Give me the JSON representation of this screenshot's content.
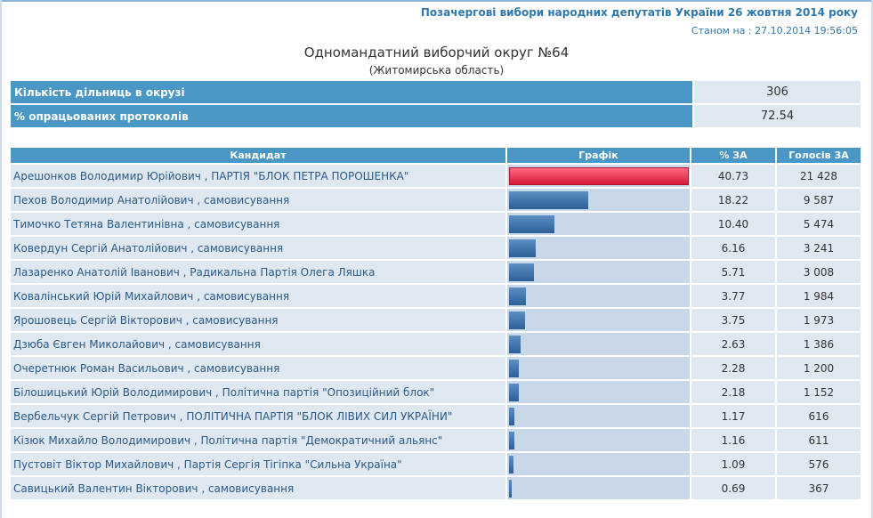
{
  "header": {
    "election_title": "Позачергові вибори народних депутатів України 26 жовтня 2014 року",
    "status_label": "Станом на :",
    "status_datetime": "27.10.2014 19:56:05"
  },
  "district": {
    "title": "Одномандатний виборчий округ №64",
    "region": "(Житомирська область)"
  },
  "summary": [
    {
      "label": "Кількість дільниць в окрузі",
      "value": "306"
    },
    {
      "label": "% опрацьованих протоколів",
      "value": "72.54"
    }
  ],
  "table": {
    "headers": [
      "Кандидат",
      "Графік",
      "% ЗА",
      "Голосів ЗА"
    ],
    "rows": [
      {
        "name": "Арешонков Володимир Юрійович",
        "party": " , ПАРТІЯ \"БЛОК ПЕТРА ПОРОШЕНКА\"",
        "pct": 40.73,
        "pct_text": "40.73",
        "votes": "21 428"
      },
      {
        "name": "Пехов Володимир Анатолійович",
        "party": " , самовисування",
        "pct": 18.22,
        "pct_text": "18.22",
        "votes": "9 587"
      },
      {
        "name": "Тимочко Тетяна Валентинівна",
        "party": " , самовисування",
        "pct": 10.4,
        "pct_text": "10.40",
        "votes": "5 474"
      },
      {
        "name": "Ковердун Сергій Анатолійович",
        "party": " , самовисування",
        "pct": 6.16,
        "pct_text": "6.16",
        "votes": "3 241"
      },
      {
        "name": "Лазаренко Анатолій Іванович",
        "party": " , Радикальна Партія Олега Ляшка",
        "pct": 5.71,
        "pct_text": "5.71",
        "votes": "3 008"
      },
      {
        "name": "Ковалінський Юрій Михайлович",
        "party": " , самовисування",
        "pct": 3.77,
        "pct_text": "3.77",
        "votes": "1 984"
      },
      {
        "name": "Ярошовець Сергій Вікторович",
        "party": " , самовисування",
        "pct": 3.75,
        "pct_text": "3.75",
        "votes": "1 973"
      },
      {
        "name": "Дзюба Євген Миколайович",
        "party": " , самовисування",
        "pct": 2.63,
        "pct_text": "2.63",
        "votes": "1 386"
      },
      {
        "name": "Очеретнюк Роман Васильович",
        "party": " , самовисування",
        "pct": 2.28,
        "pct_text": "2.28",
        "votes": "1 200"
      },
      {
        "name": "Білошицький Юрій Володимирович",
        "party": " , Політична партія \"Опозиційний блок\"",
        "pct": 2.18,
        "pct_text": "2.18",
        "votes": "1 152"
      },
      {
        "name": "Вербельчук Сергій Петрович",
        "party": " , ПОЛІТИЧНА ПАРТІЯ \"БЛОК ЛІВИХ СИЛ УКРАЇНИ\"",
        "pct": 1.17,
        "pct_text": "1.17",
        "votes": "616"
      },
      {
        "name": "Кізюк Михайло Володимирович",
        "party": " , Політична партія \"Демократичний альянс\"",
        "pct": 1.16,
        "pct_text": "1.16",
        "votes": "611"
      },
      {
        "name": "Пустовіт Віктор Михайлович",
        "party": " , Партія Сергія Тігіпка \"Сильна Україна\"",
        "pct": 1.09,
        "pct_text": "1.09",
        "votes": "576"
      },
      {
        "name": "Савицький Валентин Вікторович",
        "party": " , самовисування",
        "pct": 0.69,
        "pct_text": "0.69",
        "votes": "367"
      }
    ]
  },
  "colors": {
    "header_blue": "#4a97c5",
    "row_bg": "#dfe8f1",
    "bar_blue": "#3a6ea8",
    "bar_leader_red": "#e8294a",
    "title_blue": "#2f78ad"
  }
}
